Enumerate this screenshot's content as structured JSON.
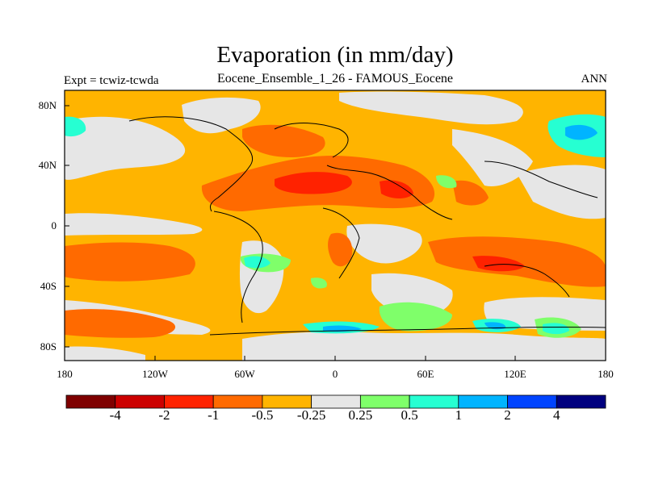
{
  "title": "Evaporation (in mm/day)",
  "left_string": "Expt = tcwiz-tcwda",
  "center_string": "Eocene_Ensemble_1_26 - FAMOUS_Eocene",
  "right_string": "ANN",
  "y_ticks": [
    "80N",
    "40N",
    "0",
    "40S",
    "80S"
  ],
  "x_ticks": [
    "180",
    "120W",
    "60W",
    "0",
    "60E",
    "120E",
    "180"
  ],
  "colorbar": {
    "colors": [
      "#7f0000",
      "#cc0000",
      "#ff2200",
      "#ff6a00",
      "#ffb400",
      "#e6e6e6",
      "#7fff6a",
      "#26ffd2",
      "#00b4ff",
      "#0044ff",
      "#00007f"
    ],
    "labels": [
      "-4",
      "-2",
      "-1",
      "-0.5",
      "-0.25",
      "0.25",
      "0.5",
      "1",
      "2",
      "4"
    ]
  }
}
